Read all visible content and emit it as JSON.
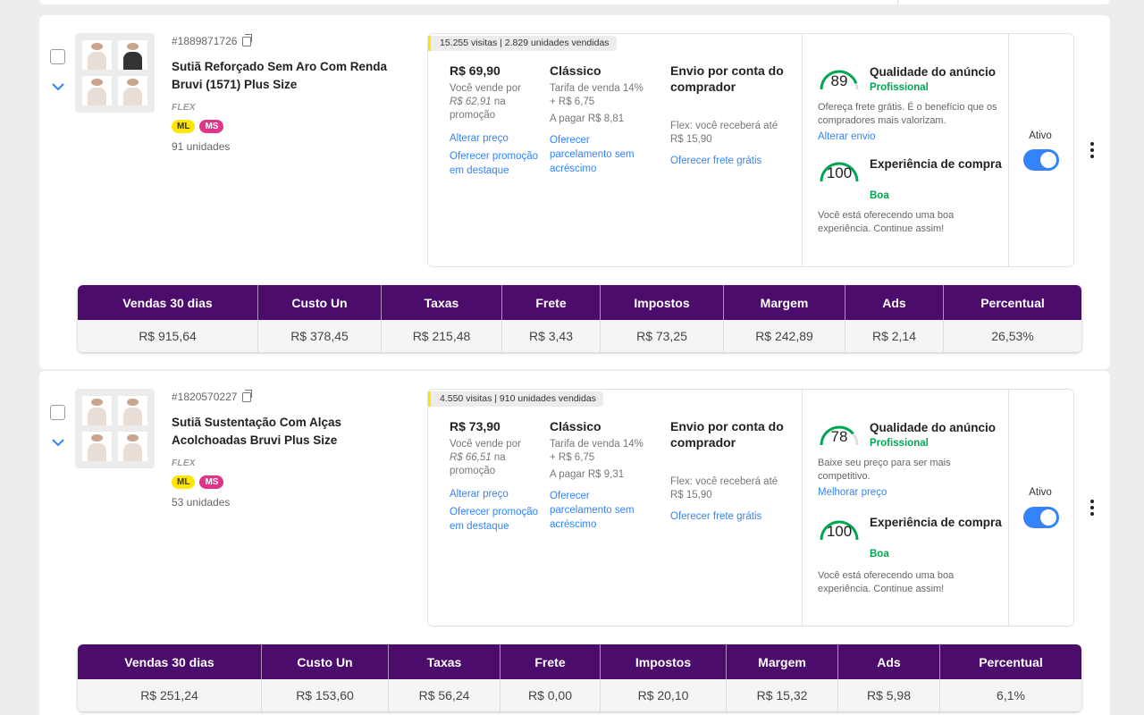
{
  "products": [
    {
      "sku": "#1889871726",
      "title": "Sutiã Reforçado Sem Aro Com Renda Bruvi (1571) Plus Size",
      "tag": "FLEX",
      "badges": [
        "ML",
        "MS"
      ],
      "units": "91 unidades",
      "visits": "15.255 visitas | 2.829 unidades vendidas",
      "price": {
        "value": "R$ 69,90",
        "line1": "Você vende por",
        "promo_price": "R$ 62,91",
        "line2": " na",
        "line3": "promoção",
        "link1": "Alterar preço",
        "link2": "Oferecer promoção em destaque"
      },
      "listing": {
        "type": "Clássico",
        "fee": "Tarifa de venda 14% + R$ 6,75",
        "pay": "A pagar R$ 8,81",
        "link": "Oferecer parcelamento sem acréscimo"
      },
      "shipping": {
        "title": "Envio por conta do comprador",
        "flex": "Flex: você receberá até R$ 15,90",
        "link": "Oferecer frete grátis"
      },
      "quality": {
        "score": "89",
        "score_value": 89,
        "title": "Qualidade do anúncio",
        "level": "Profissional",
        "desc": "Ofereça frete grátis. É o benefício que os compradores mais valorizam.",
        "link": "Alterar envio"
      },
      "experience": {
        "score": "100",
        "score_value": 100,
        "title": "Experiência de compra",
        "level": "Boa",
        "desc": "Você está oferecendo uma boa experiência. Continue assim!"
      },
      "status": "Ativo",
      "stats_headers": [
        "Vendas 30 dias",
        "Custo Un",
        "Taxas",
        "Frete",
        "Impostos",
        "Margem",
        "Ads",
        "Percentual"
      ],
      "stats_values": [
        "R$ 915,64",
        "R$ 378,45",
        "R$ 215,48",
        "R$ 3,43",
        "R$ 73,25",
        "R$ 242,89",
        "R$ 2,14",
        "26,53%"
      ]
    },
    {
      "sku": "#1820570227",
      "title": "Sutiã Sustentação Com Alças Acolchoadas Bruvi Plus Size",
      "tag": "FLEX",
      "badges": [
        "ML",
        "MS"
      ],
      "units": "53 unidades",
      "visits": "4.550 visitas | 910 unidades vendidas",
      "price": {
        "value": "R$ 73,90",
        "line1": "Você vende por",
        "promo_price": "R$ 66,51",
        "line2": " na",
        "line3": "promoção",
        "link1": "Alterar preço",
        "link2": "Oferecer promoção em destaque"
      },
      "listing": {
        "type": "Clássico",
        "fee": "Tarifa de venda 14% + R$ 6,75",
        "pay": "A pagar R$ 9,31",
        "link": "Oferecer parcelamento sem acréscimo"
      },
      "shipping": {
        "title": "Envio por conta do comprador",
        "flex": "Flex: você receberá até R$ 15,90",
        "link": "Oferecer frete grátis"
      },
      "quality": {
        "score": "78",
        "score_value": 78,
        "title": "Qualidade do anúncio",
        "level": "Profissional",
        "desc": "Baixe seu preço para ser mais competitivo.",
        "link": "Melhorar preço"
      },
      "experience": {
        "score": "100",
        "score_value": 100,
        "title": "Experiência de compra",
        "level": "Boa",
        "desc": "Você está oferecendo uma boa experiência. Continue assim!"
      },
      "status": "Ativo",
      "stats_headers": [
        "Vendas 30 dias",
        "Custo Un",
        "Taxas",
        "Frete",
        "Impostos",
        "Margem",
        "Ads",
        "Percentual"
      ],
      "stats_values": [
        "R$ 251,24",
        "R$ 153,60",
        "R$ 56,24",
        "R$ 0,00",
        "R$ 20,10",
        "R$ 15,32",
        "R$ 5,98",
        "6,1%"
      ]
    }
  ],
  "colors": {
    "accent": "#3483fa",
    "header": "#4b0c6b",
    "good": "#00a650",
    "ml_badge": "#ffe600",
    "ms_badge": "#e0338a"
  }
}
